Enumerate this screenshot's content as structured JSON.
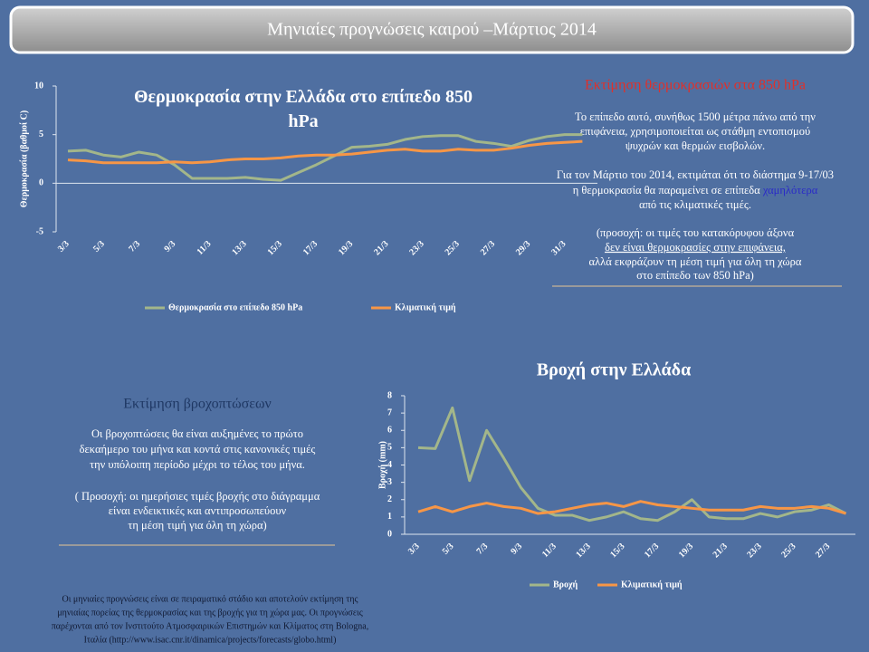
{
  "header": {
    "title": "Μηνιαίες προγνώσεις καιρού –Μάρτιος 2014"
  },
  "temp_note": {
    "heading": "Εκτίμηση θερμοκρασιών στα 850 hPa",
    "p1": [
      "Το επίπεδο αυτό, συνήθως 1500 μέτρα πάνω από την",
      "επιφάνεια, χρησιμοποιείται ως στάθμη  εντοπισμού",
      "ψυχρών και θερμών εισβολών."
    ],
    "p2": [
      "Για τον Μάρτιο του 2014, εκτιμάται ότι το διάστημα 9-17/03",
      "η θερμοκρασία θα παραμείνει σε επίπεδα",
      "χαμηλότερα",
      "από τις κλιματικές τιμές."
    ],
    "p3": [
      "(προσοχή: οι τιμές του  κατακόρυφου άξονα",
      "δεν είναι θερμοκρασίες στην επιφάνεια,",
      "αλλά εκφράζουν τη μέση τιμή για όλη τη χώρα",
      "στο επίπεδο των 850 hPa)"
    ]
  },
  "rain_note": {
    "heading": "Εκτίμηση βροχοπτώσεων",
    "p1": [
      "Οι βροχοπτώσεις θα είναι αυξημένες το πρώτο",
      "δεκαήμερο του μήνα και κοντά στις κανονικές τιμές",
      "την υπόλοιπη περίοδο μέχρι το τέλος του μήνα."
    ],
    "p2": [
      "( Προσοχή: οι ημερήσιες τιμές βροχής στο διάγραμμα",
      "είναι ενδεικτικές και  αντιπροσωπεύουν",
      "τη μέση τιμή για όλη τη χώρα)"
    ]
  },
  "footer": [
    "Οι μηνιαίες προγνώσεις  είναι σε πειραματικό στάδιο και αποτελούν  εκτίμηση της",
    "μηνιαίας πορείας της θερμοκρασίας και της βροχής για τη χώρα μας. Οι προγνώσεις",
    "παρέχονται από τον Ινστιτούτο Ατμοσφαιρικών Επιστημών και Κλίματος στη Bologna,",
    "Ιταλία (http://www.isac.cnr.it/dinamica/projects/forecasts/globo.html)"
  ],
  "chart_data": [
    {
      "type": "line",
      "title": "Θερμοκρασία στην Ελλάδα στο επίπεδο 850 hPa",
      "y_label": "Θερμοκρασία  (βαθμοί  C)",
      "categories": [
        "3/3",
        null,
        "5/3",
        null,
        "7/3",
        null,
        "9/3",
        null,
        "11/3",
        null,
        "13/3",
        null,
        "15/3",
        null,
        "17/3",
        null,
        "19/3",
        null,
        "21/3",
        null,
        "23/3",
        null,
        "25/3",
        null,
        "27/3",
        null,
        "29/3",
        null,
        "31/3",
        null
      ],
      "series": [
        {
          "name": "Θερμοκρασία  στο επίπεδο 850 hPa",
          "color": "#a3b68a",
          "values": [
            3.3,
            3.4,
            2.9,
            2.7,
            3.2,
            2.9,
            1.9,
            0.5,
            0.5,
            0.5,
            0.6,
            0.4,
            0.3,
            1.1,
            1.9,
            2.8,
            3.7,
            3.8,
            4.0,
            4.5,
            4.8,
            4.9,
            4.9,
            4.3,
            4.1,
            3.8,
            4.4,
            4.8,
            5.0,
            5.0
          ]
        },
        {
          "name": "Κλιματική  τιμή",
          "color": "#f79646",
          "values": [
            2.4,
            2.3,
            2.1,
            2.1,
            2.1,
            2.1,
            2.2,
            2.1,
            2.2,
            2.4,
            2.5,
            2.5,
            2.6,
            2.8,
            2.9,
            2.9,
            3.0,
            3.2,
            3.4,
            3.5,
            3.3,
            3.3,
            3.5,
            3.4,
            3.4,
            3.6,
            3.9,
            4.1,
            4.2,
            4.3
          ]
        }
      ],
      "ylim": [
        -5,
        10
      ],
      "yticks": [
        -5,
        0,
        5,
        10
      ],
      "grid": false,
      "legend": "bottom"
    },
    {
      "type": "line",
      "title": "Βροχή στην Ελλάδα",
      "y_label": "Βροχή (mm)",
      "categories": [
        "3/3",
        null,
        "5/3",
        null,
        "7/3",
        null,
        "9/3",
        null,
        "11/3",
        null,
        "13/3",
        null,
        "15/3",
        null,
        "17/3",
        null,
        "19/3",
        null,
        "21/3",
        null,
        "23/3",
        null,
        "25/3",
        null,
        "27/3",
        null
      ],
      "series": [
        {
          "name": "Βροχή",
          "color": "#a3b68a",
          "values": [
            5.0,
            4.95,
            7.3,
            3.1,
            6.0,
            4.4,
            2.7,
            1.5,
            1.1,
            1.1,
            0.8,
            1.0,
            1.3,
            0.9,
            0.8,
            1.3,
            2.0,
            1.0,
            0.9,
            0.9,
            1.2,
            1.0,
            1.3,
            1.4,
            1.7,
            1.2
          ]
        },
        {
          "name": "Κλιματική  τιμή",
          "color": "#f79646",
          "values": [
            1.3,
            1.6,
            1.3,
            1.6,
            1.8,
            1.6,
            1.5,
            1.2,
            1.3,
            1.5,
            1.7,
            1.8,
            1.6,
            1.9,
            1.7,
            1.6,
            1.5,
            1.4,
            1.4,
            1.4,
            1.6,
            1.5,
            1.5,
            1.6,
            1.5,
            1.2
          ]
        }
      ],
      "ylim": [
        0,
        8
      ],
      "yticks": [
        0,
        1,
        2,
        3,
        4,
        5,
        6,
        7,
        8
      ],
      "grid": false,
      "legend": "bottom"
    }
  ]
}
